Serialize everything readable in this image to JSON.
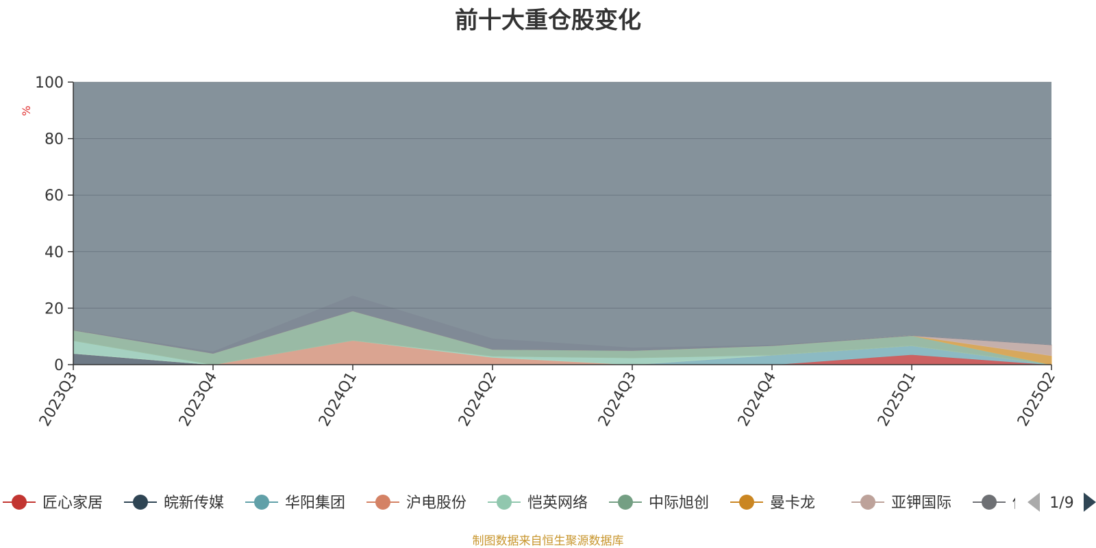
{
  "chart_data": {
    "type": "area",
    "title": "前十大重仓股变化",
    "ylabel": "%",
    "ylim": [
      0,
      100
    ],
    "yticks": [
      "0",
      "20",
      "40",
      "60",
      "80",
      "100"
    ],
    "categories": [
      "2023Q3",
      "2023Q4",
      "2024Q1",
      "2024Q2",
      "2024Q3",
      "2024Q4",
      "2025Q1",
      "2025Q2"
    ],
    "stacked": true,
    "grid": true,
    "legend_position": "bottom",
    "background_color": "#85929b",
    "series": [
      {
        "name": "匠心家居",
        "color": "#d45c5c",
        "values": [
          null,
          null,
          null,
          null,
          null,
          null,
          3.6,
          0
        ]
      },
      {
        "name": "皖新传媒",
        "color": "#6c7884",
        "values": [
          4,
          0,
          null,
          null,
          null,
          null,
          null,
          null
        ]
      },
      {
        "name": "华阳集团",
        "color": "#8dbfc8",
        "values": [
          null,
          null,
          null,
          null,
          null,
          3.4,
          3.1,
          0
        ]
      },
      {
        "name": "沪电股份",
        "color": "#e3a690",
        "values": [
          null,
          0,
          8.6,
          2.6,
          0,
          null,
          null,
          null
        ]
      },
      {
        "name": "恺英网络",
        "color": "#a8d8c5",
        "values": [
          4.5,
          null,
          null,
          0.4,
          2.4,
          null,
          null,
          null
        ]
      },
      {
        "name": "中际旭创",
        "color": "#9bbfa6",
        "values": [
          3.7,
          4,
          10.4,
          2.4,
          2.6,
          3.3,
          3.6,
          0
        ]
      },
      {
        "name": "曼卡龙",
        "color": "#e0ab57",
        "values": [
          null,
          null,
          null,
          null,
          null,
          null,
          null,
          3.2
        ]
      },
      {
        "name": "亚钾国际",
        "color": "#ccb4ae",
        "values": [
          null,
          null,
          null,
          null,
          null,
          null,
          null,
          3.8
        ]
      },
      {
        "name": "传音控股",
        "color": "#808a96",
        "values": [
          null,
          0.5,
          5.3,
          3.7,
          0.9,
          0.1,
          0,
          0
        ]
      }
    ],
    "series_note": ""
  },
  "legend": {
    "items": [
      "匠心家居",
      "皖新传媒",
      "华阳集团",
      "沪电股份",
      "恺英网络",
      "中际旭创",
      "曼卡龙",
      "亚钾国际",
      "传音控股"
    ],
    "colors": [
      "#c23531",
      "#2f4554",
      "#61a0a8",
      "#d48265",
      "#91c7ae",
      "#749f83",
      "#ca8622",
      "#bda29a",
      "#6e7074"
    ],
    "page": "1/9",
    "prev_icon": "triangle-left-icon",
    "next_icon": "triangle-right-icon"
  },
  "footer": "制图数据来自恒生聚源数据库"
}
